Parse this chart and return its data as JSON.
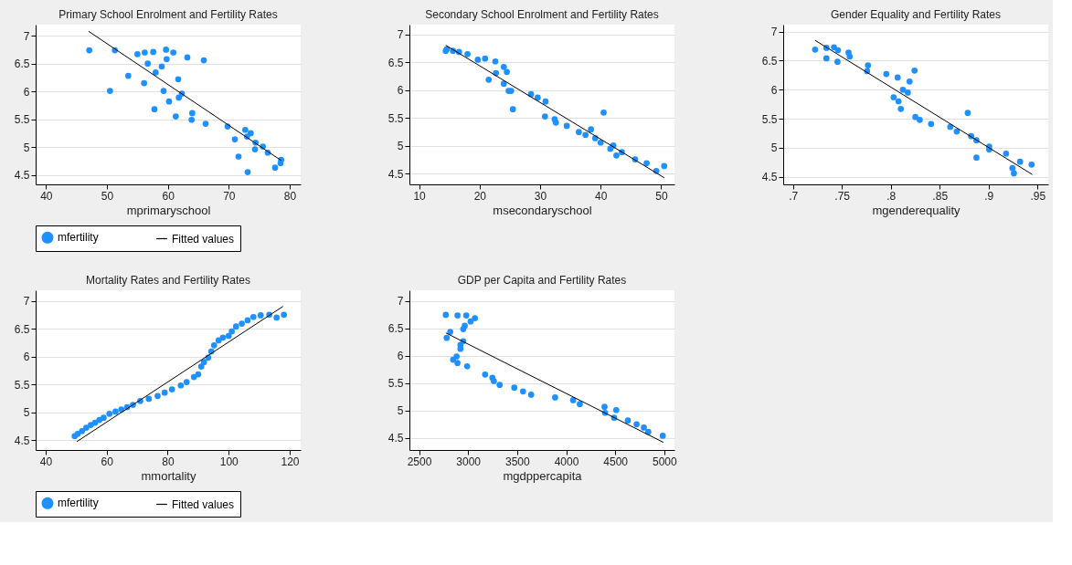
{
  "chart_data": [
    {
      "type": "scatter",
      "title": "Primary School Enrolment and Fertility Rates",
      "xlabel": "mprimaryschool",
      "xlim": [
        38.3,
        81.8
      ],
      "xticks": [
        40,
        50,
        60,
        70,
        80
      ],
      "ylim": [
        4.33,
        7.2
      ],
      "yticks": [
        4.5,
        5,
        5.5,
        6,
        6.5,
        7
      ],
      "grid": "y",
      "legend": "bottom",
      "series": [
        {
          "name": "mfertility",
          "type": "scatter",
          "marker": "circle",
          "color": "#1e90ff",
          "x": [
            47.1,
            51.3,
            55.0,
            56.2,
            57.6,
            59.7,
            60.9,
            63.2,
            65.9,
            56.7,
            59.8,
            59.0,
            58.0,
            53.5,
            56.1,
            61.7,
            50.5,
            59.3,
            62.3,
            61.8,
            60.2,
            57.8,
            64.0,
            61.3,
            63.9,
            66.2,
            69.8,
            72.7,
            73.6,
            73.0,
            71.0,
            74.4,
            75.6,
            74.3,
            76.4,
            71.6,
            78.6,
            78.5,
            77.6,
            73.1
          ],
          "values": [
            6.74,
            6.74,
            6.67,
            6.7,
            6.71,
            6.75,
            6.7,
            6.61,
            6.56,
            6.5,
            6.58,
            6.45,
            6.34,
            6.28,
            6.15,
            6.22,
            6.01,
            6.01,
            5.96,
            5.89,
            5.82,
            5.68,
            5.61,
            5.55,
            5.49,
            5.42,
            5.37,
            5.31,
            5.25,
            5.19,
            5.14,
            5.08,
            5.01,
            4.96,
            4.9,
            4.83,
            4.77,
            4.71,
            4.63,
            4.55
          ]
        },
        {
          "name": "Fitted values",
          "type": "line",
          "color": "#000000",
          "x": [
            47.0,
            78.6
          ],
          "values": [
            7.08,
            4.76
          ]
        }
      ]
    },
    {
      "type": "scatter",
      "title": "Secondary School Enrolment and Fertility Rates",
      "xlabel": "msecondaryschool",
      "xlim": [
        8.4,
        52.2
      ],
      "xticks": [
        10,
        20,
        30,
        40,
        50
      ],
      "ylim": [
        4.31,
        7.18
      ],
      "yticks": [
        4.5,
        5,
        5.5,
        6,
        6.5,
        7
      ],
      "grid": "y",
      "legend": "bottom",
      "series": [
        {
          "name": "mfertility",
          "type": "scatter",
          "marker": "circle",
          "color": "#1e90ff",
          "x": [
            14.4,
            14.6,
            15.6,
            16.6,
            18.0,
            19.7,
            20.9,
            22.6,
            21.5,
            22.7,
            24.0,
            24.5,
            24.0,
            24.8,
            25.2,
            25.5,
            28.5,
            29.6,
            30.9,
            30.8,
            32.4,
            32.6,
            34.4,
            36.4,
            37.5,
            38.4,
            39.1,
            40.0,
            40.5,
            42.1,
            41.6,
            42.6,
            43.5,
            45.7,
            47.6,
            49.2,
            50.5
          ],
          "values": [
            6.71,
            6.74,
            6.71,
            6.69,
            6.65,
            6.55,
            6.57,
            6.52,
            6.19,
            6.31,
            6.42,
            6.33,
            6.12,
            5.99,
            5.99,
            5.66,
            5.93,
            5.87,
            5.8,
            5.53,
            5.48,
            5.42,
            5.36,
            5.25,
            5.2,
            5.3,
            5.14,
            5.06,
            5.6,
            5.01,
            4.95,
            4.83,
            4.89,
            4.76,
            4.69,
            4.55,
            4.64
          ]
        },
        {
          "name": "Fitted values",
          "type": "line",
          "color": "#000000",
          "x": [
            14.4,
            50.5
          ],
          "values": [
            6.81,
            4.43
          ]
        }
      ]
    },
    {
      "type": "scatter",
      "title": "Gender Equality and Fertility Rates",
      "xlabel": "mgenderequality",
      "xlim": [
        0.69,
        0.961
      ],
      "xticks": [
        {
          "value": 0.7,
          "label": ".7"
        },
        {
          "value": 0.75,
          "label": ".75"
        },
        {
          "value": 0.8,
          "label": ".8"
        },
        {
          "value": 0.85,
          "label": ".85"
        },
        {
          "value": 0.9,
          "label": ".9"
        },
        {
          "value": 0.95,
          "label": ".95"
        }
      ],
      "ylim": [
        4.37,
        7.12
      ],
      "yticks": [
        4.5,
        5,
        5.5,
        6,
        6.5,
        7
      ],
      "grid": "y",
      "legend": "bottom",
      "series": [
        {
          "name": "mfertility",
          "type": "scatter",
          "marker": "circle",
          "color": "#1e90ff",
          "x": [
            0.7226,
            0.7342,
            0.7419,
            0.746,
            0.7342,
            0.7455,
            0.7568,
            0.758,
            0.7767,
            0.7758,
            0.7954,
            0.807,
            0.8192,
            0.8243,
            0.8124,
            0.8174,
            0.8029,
            0.8079,
            0.8103,
            0.8251,
            0.8296,
            0.8412,
            0.8608,
            0.8674,
            0.8787,
            0.8822,
            0.8876,
            0.8876,
            0.9006,
            0.9006,
            0.9179,
            0.9322,
            0.944,
            0.9244,
            0.9259
          ],
          "values": [
            6.69,
            6.72,
            6.73,
            6.68,
            6.54,
            6.48,
            6.64,
            6.57,
            6.42,
            6.32,
            6.27,
            6.21,
            6.14,
            6.33,
            6.0,
            5.95,
            5.87,
            5.8,
            5.67,
            5.53,
            5.48,
            5.41,
            5.36,
            5.28,
            5.6,
            5.2,
            5.13,
            4.83,
            5.02,
            4.97,
            4.9,
            4.76,
            4.71,
            4.65,
            4.56
          ]
        },
        {
          "name": "Fitted values",
          "type": "line",
          "color": "#000000",
          "x": [
            0.7226,
            0.9447
          ],
          "values": [
            6.85,
            4.54
          ]
        }
      ]
    },
    {
      "type": "scatter",
      "title": "Mortality Rates and Fertility Rates",
      "xlabel": "mmortality",
      "xlim": [
        36.7,
        123.6
      ],
      "xticks": [
        40,
        60,
        80,
        100,
        120
      ],
      "ylim": [
        4.32,
        7.19
      ],
      "yticks": [
        4.5,
        5,
        5.5,
        6,
        6.5,
        7
      ],
      "grid": "y",
      "legend": "bottom",
      "series": [
        {
          "name": "mfertility",
          "type": "scatter",
          "marker": "circle",
          "color": "#1e90ff",
          "x": [
            49.5,
            50.5,
            51.9,
            53.3,
            54.8,
            56.2,
            57.6,
            59.0,
            60.9,
            62.9,
            64.8,
            66.7,
            68.6,
            71.0,
            73.8,
            76.7,
            79.0,
            81.4,
            84.3,
            86.2,
            88.6,
            90.0,
            91.0,
            91.9,
            93.3,
            94.3,
            95.2,
            96.7,
            98.1,
            100.0,
            101.0,
            102.4,
            104.3,
            106.2,
            108.1,
            110.5,
            113.3,
            115.7,
            118.1
          ],
          "values": [
            4.57,
            4.61,
            4.66,
            4.72,
            4.77,
            4.81,
            4.86,
            4.9,
            4.97,
            5.01,
            5.05,
            5.09,
            5.13,
            5.2,
            5.24,
            5.29,
            5.35,
            5.41,
            5.48,
            5.54,
            5.63,
            5.68,
            5.82,
            5.9,
            5.98,
            6.09,
            6.2,
            6.29,
            6.34,
            6.37,
            6.45,
            6.54,
            6.59,
            6.65,
            6.71,
            6.74,
            6.75,
            6.7,
            6.75
          ]
        },
        {
          "name": "Fitted values",
          "type": "line",
          "color": "#000000",
          "x": [
            50.2,
            117.8
          ],
          "values": [
            4.47,
            6.9
          ]
        }
      ]
    },
    {
      "type": "scatter",
      "title": "GDP per Capita and Fertility Rates",
      "xlabel": "mgdppercapita",
      "xlim": [
        2402,
        5104
      ],
      "xticks": [
        2500,
        3000,
        3500,
        4000,
        4500,
        5000
      ],
      "ylim": [
        4.28,
        7.2
      ],
      "yticks": [
        4.5,
        5,
        5.5,
        6,
        6.5,
        7
      ],
      "grid": "y",
      "legend": "bottom",
      "series": [
        {
          "name": "mfertility",
          "type": "scatter",
          "marker": "circle",
          "color": "#1e90ff",
          "x": [
            2773,
            2892,
            2981,
            3070,
            3026,
            2966,
            2951,
            2818,
            2782,
            2951,
            2922,
            2922,
            2883,
            2847,
            2892,
            2990,
            3174,
            3248,
            3263,
            3322,
            3471,
            3560,
            3643,
            3887,
            4071,
            4139,
            4391,
            4397,
            4510,
            4489,
            4629,
            4718,
            4792,
            4837,
            4985
          ],
          "values": [
            6.75,
            6.74,
            6.74,
            6.69,
            6.63,
            6.55,
            6.49,
            6.44,
            6.33,
            6.27,
            6.2,
            6.13,
            5.99,
            5.93,
            5.87,
            5.81,
            5.66,
            5.6,
            5.54,
            5.47,
            5.42,
            5.35,
            5.29,
            5.24,
            5.19,
            5.12,
            5.07,
            4.96,
            5.01,
            4.87,
            4.82,
            4.75,
            4.69,
            4.61,
            4.54
          ]
        },
        {
          "name": "Fitted values",
          "type": "line",
          "color": "#000000",
          "x": [
            2773,
            4991
          ],
          "values": [
            6.42,
            4.42
          ]
        }
      ]
    }
  ]
}
